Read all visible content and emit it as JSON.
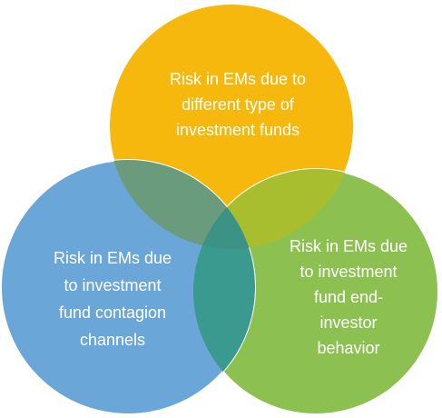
{
  "nodes": [
    {
      "lines": [
        "Risk in EMs due to",
        "different type of",
        "investment funds"
      ]
    },
    {
      "lines": [
        "Risk in EMs due",
        "to investment",
        "fund contagion",
        "channels"
      ]
    },
    {
      "lines": [
        "Risk in EMs due",
        "to investment",
        "fund end-",
        "investor",
        "behavior"
      ]
    }
  ]
}
